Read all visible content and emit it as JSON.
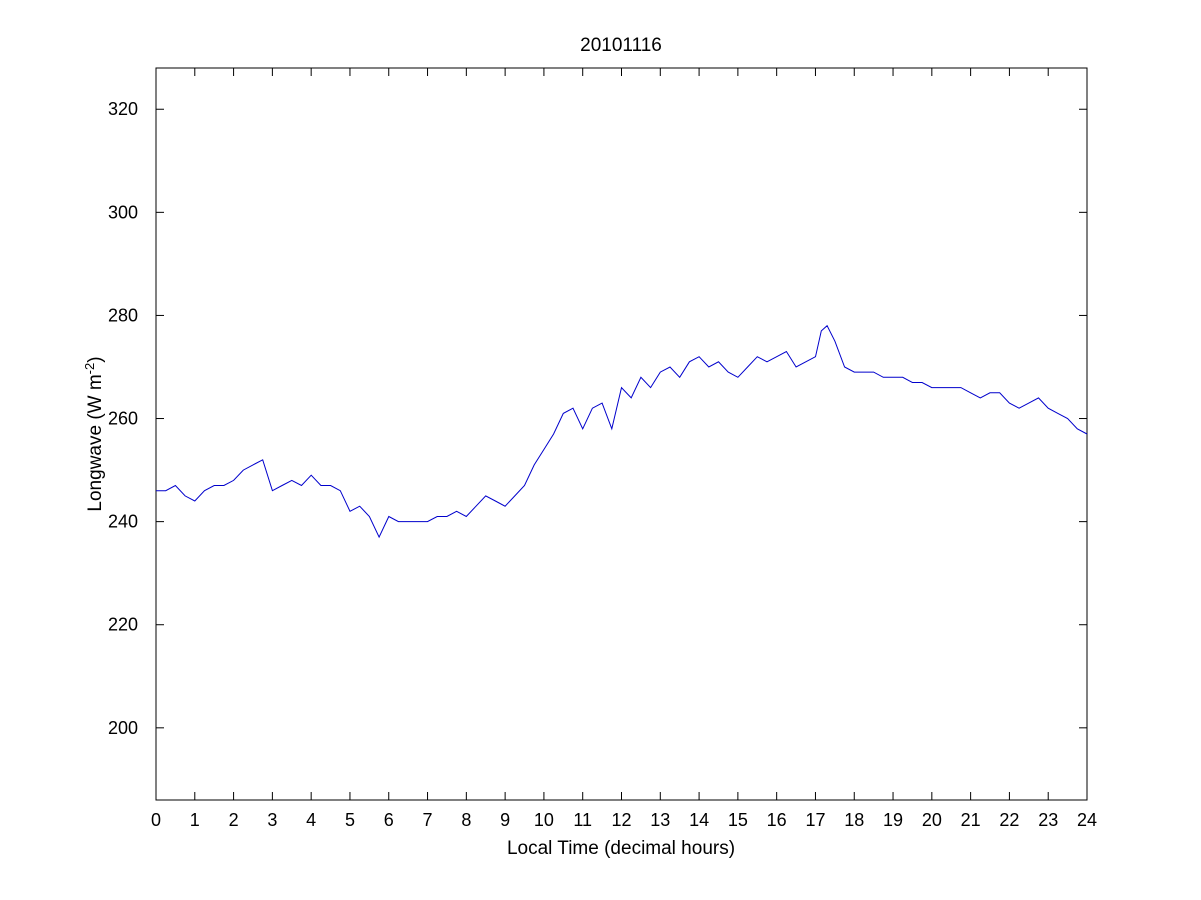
{
  "chart_data": {
    "type": "line",
    "title": "20101116",
    "xlabel": "Local Time (decimal hours)",
    "ylabel": {
      "main": "Longwave (W m",
      "superscript": "-2",
      "close": ")"
    },
    "xlim": [
      0,
      24
    ],
    "ylim": [
      186,
      328
    ],
    "xticks": [
      0,
      1,
      2,
      3,
      4,
      5,
      6,
      7,
      8,
      9,
      10,
      11,
      12,
      13,
      14,
      15,
      16,
      17,
      18,
      19,
      20,
      21,
      22,
      23,
      24
    ],
    "yticks": [
      200,
      220,
      240,
      260,
      280,
      300,
      320
    ],
    "grid": false,
    "line_color": "#0000cc",
    "series": [
      {
        "x": [
          0,
          0.25,
          0.5,
          0.75,
          1.0,
          1.25,
          1.5,
          1.75,
          2.0,
          2.25,
          2.5,
          2.75,
          3.0,
          3.25,
          3.5,
          3.75,
          4.0,
          4.25,
          4.5,
          4.75,
          5.0,
          5.25,
          5.5,
          5.75,
          6.0,
          6.25,
          6.5,
          6.75,
          7.0,
          7.25,
          7.5,
          7.75,
          8.0,
          8.25,
          8.5,
          8.75,
          9.0,
          9.25,
          9.5,
          9.75,
          10.0,
          10.25,
          10.5,
          10.75,
          11.0,
          11.25,
          11.5,
          11.75,
          12.0,
          12.25,
          12.5,
          12.75,
          13.0,
          13.25,
          13.5,
          13.75,
          14.0,
          14.25,
          14.5,
          14.75,
          15.0,
          15.25,
          15.5,
          15.75,
          16.0,
          16.25,
          16.5,
          16.75,
          17.0,
          17.15,
          17.3,
          17.5,
          17.75,
          18.0,
          18.25,
          18.5,
          18.75,
          19.0,
          19.25,
          19.5,
          19.75,
          20.0,
          20.25,
          20.5,
          20.75,
          21.0,
          21.25,
          21.5,
          21.75,
          22.0,
          22.25,
          22.5,
          22.75,
          23.0,
          23.25,
          23.5,
          23.75,
          24.0
        ],
        "y": [
          246,
          246,
          247,
          245,
          244,
          246,
          247,
          247,
          248,
          250,
          251,
          252,
          246,
          247,
          248,
          247,
          249,
          247,
          247,
          246,
          242,
          243,
          241,
          237,
          241,
          240,
          240,
          240,
          240,
          241,
          241,
          242,
          241,
          243,
          245,
          244,
          243,
          245,
          247,
          251,
          254,
          257,
          261,
          262,
          258,
          262,
          263,
          258,
          266,
          264,
          268,
          266,
          269,
          270,
          268,
          271,
          272,
          270,
          271,
          269,
          268,
          270,
          272,
          271,
          272,
          273,
          270,
          271,
          272,
          277,
          278,
          275,
          270,
          269,
          269,
          269,
          268,
          268,
          268,
          267,
          267,
          266,
          266,
          266,
          266,
          265,
          264,
          265,
          265,
          263,
          262,
          263,
          264,
          262,
          261,
          260,
          258,
          257
        ]
      }
    ]
  }
}
